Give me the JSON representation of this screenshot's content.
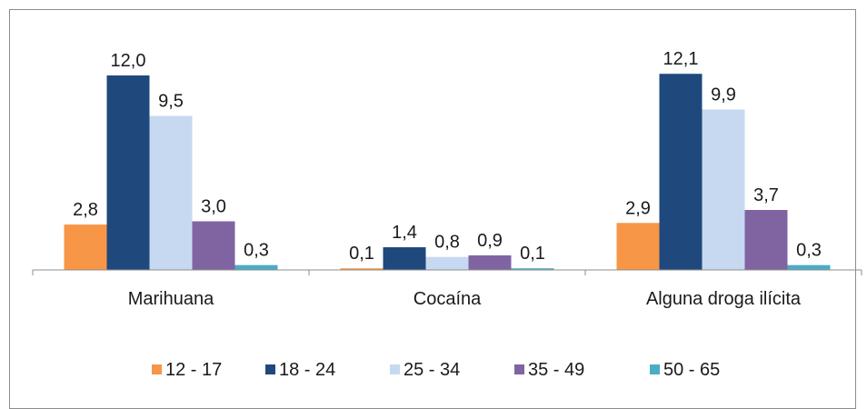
{
  "chart_data": {
    "type": "bar",
    "categories": [
      "Marihuana",
      "Cocaína",
      "Alguna droga ilícita"
    ],
    "series": [
      {
        "name": "12 - 17",
        "color": "#f79646",
        "values": [
          2.8,
          0.1,
          2.9
        ],
        "labels": [
          "2,8",
          "0,1",
          "2,9"
        ]
      },
      {
        "name": "18 - 24",
        "color": "#1f497d",
        "values": [
          12.0,
          1.4,
          12.1
        ],
        "labels": [
          "12,0",
          "1,4",
          "12,1"
        ]
      },
      {
        "name": "25 - 34",
        "color": "#c6d9f1",
        "values": [
          9.5,
          0.8,
          9.9
        ],
        "labels": [
          "9,5",
          "0,8",
          "9,9"
        ]
      },
      {
        "name": "35 - 49",
        "color": "#8064a2",
        "values": [
          3.0,
          0.9,
          3.7
        ],
        "labels": [
          "3,0",
          "0,9",
          "3,7"
        ]
      },
      {
        "name": "50 - 65",
        "color": "#4bacc6",
        "values": [
          0.3,
          0.1,
          0.3
        ],
        "labels": [
          "0,3",
          "0,1",
          "0,3"
        ]
      }
    ],
    "legend_position": "bottom",
    "gridlines": false,
    "ylim": [
      0,
      12.5
    ]
  }
}
